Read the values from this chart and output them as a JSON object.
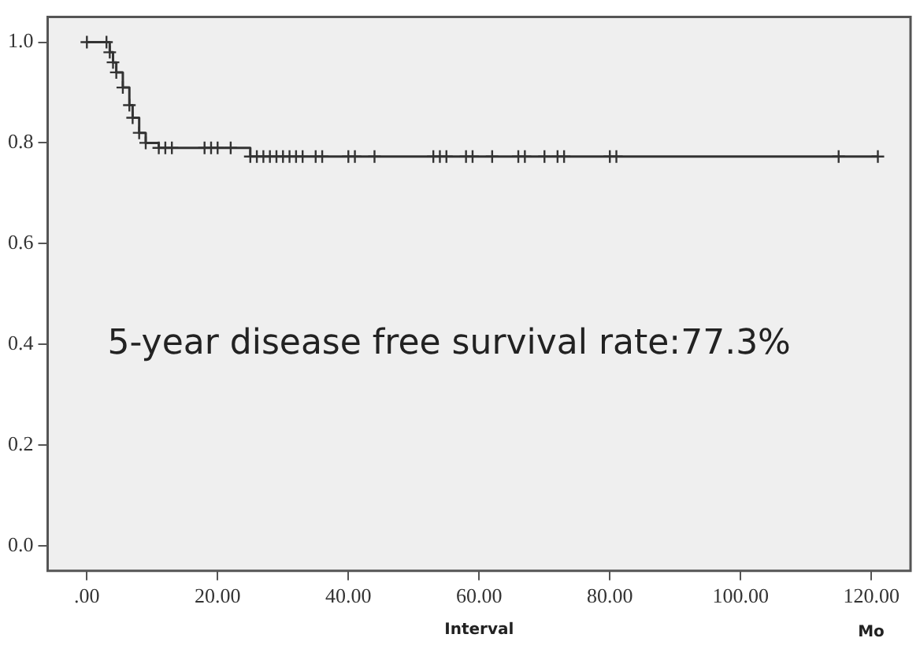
{
  "chart_data": {
    "type": "step",
    "xlabel": "Interval",
    "annotations": [
      "5-year disease free survival rate:77.3%",
      "Mo"
    ],
    "xlim": [
      -6,
      126
    ],
    "xticks": [
      {
        "value": 0,
        "label": ".00"
      },
      {
        "value": 20,
        "label": "20.00"
      },
      {
        "value": 40,
        "label": "40.00"
      },
      {
        "value": 60,
        "label": "60.00"
      },
      {
        "value": 80,
        "label": "80.00"
      },
      {
        "value": 100,
        "label": "100.00"
      },
      {
        "value": 120,
        "label": "120.00"
      }
    ],
    "ylim": [
      -0.05,
      1.05
    ],
    "yticks": [
      {
        "value": 0,
        "label": "0.0"
      },
      {
        "value": 0.2,
        "label": "0.2"
      },
      {
        "value": 0.4,
        "label": "0.4"
      },
      {
        "value": 0.6,
        "label": "0.6"
      },
      {
        "value": 0.8,
        "label": "0.8"
      },
      {
        "value": 1,
        "label": "1.0"
      }
    ],
    "grid": false,
    "legend": false,
    "marker": "cross",
    "line_style": "solid",
    "series": [
      {
        "color": "#333333",
        "x": [
          0,
          3,
          3.5,
          4,
          4.5,
          5.5,
          6.5,
          7,
          8,
          9,
          11,
          12,
          13,
          18,
          19,
          20,
          22,
          25,
          26,
          27,
          28,
          29,
          30,
          31,
          32,
          33,
          35,
          36,
          40,
          41,
          44,
          53,
          54,
          55,
          58,
          59,
          62,
          66,
          67,
          70,
          72,
          73,
          80,
          81,
          115,
          121
        ],
        "values": [
          1,
          1,
          0.98,
          0.96,
          0.94,
          0.91,
          0.875,
          0.85,
          0.82,
          0.8,
          0.79,
          0.79,
          0.79,
          0.79,
          0.79,
          0.79,
          0.79,
          0.773,
          0.773,
          0.773,
          0.773,
          0.773,
          0.773,
          0.773,
          0.773,
          0.773,
          0.773,
          0.773,
          0.773,
          0.773,
          0.773,
          0.773,
          0.773,
          0.773,
          0.773,
          0.773,
          0.773,
          0.773,
          0.773,
          0.773,
          0.773,
          0.773,
          0.773,
          0.773,
          0.773,
          0.773
        ]
      }
    ]
  }
}
